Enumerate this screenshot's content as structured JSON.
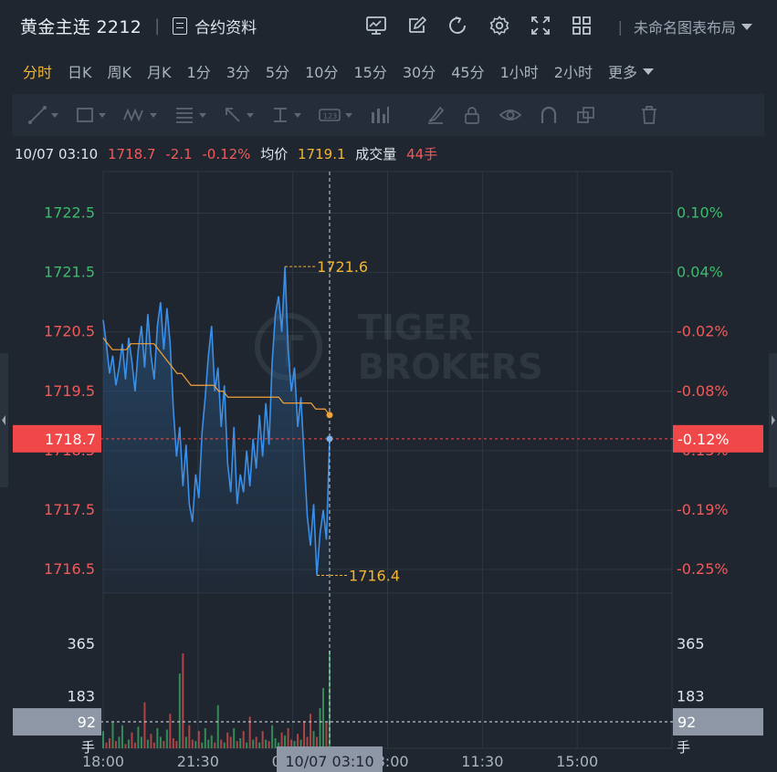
{
  "header": {
    "symbol": "黄金主连 2212",
    "contract_info": "合约资料",
    "layout_name": "未命名图表布局",
    "icons": [
      "chart-monitor-icon",
      "edit-icon",
      "refresh-icon",
      "settings-icon",
      "fullscreen-icon",
      "grid-layout-icon"
    ]
  },
  "timeframes": [
    "分时",
    "日K",
    "周K",
    "月K",
    "1分",
    "3分",
    "5分",
    "10分",
    "15分",
    "30分",
    "45分",
    "1小时",
    "2小时"
  ],
  "active_timeframe": "分时",
  "more_label": "更多",
  "drawing_tools": [
    "trend-line-icon",
    "rectangle-icon",
    "pattern-icon",
    "fib-icon",
    "arrow-icon",
    "measure-icon",
    "price-label-icon",
    "bar-pattern-icon",
    "brush-icon",
    "lock-icon",
    "eye-icon",
    "magnet-icon",
    "clone-icon",
    "trash-icon"
  ],
  "info": {
    "datetime": "10/07 03:10",
    "price": "1718.7",
    "change": "-2.1",
    "change_pct": "-0.12%",
    "avg_label": "均价",
    "avg_value": "1719.1",
    "volume_label": "成交量",
    "volume_value": "44手"
  },
  "watermark": [
    "TIGER",
    "BROKERS"
  ],
  "colors": {
    "background": "#1f2630",
    "price_line": "#3a8fe8",
    "avg_line": "#f2a23c",
    "up": "#3dbb6d",
    "down": "#f25a5a",
    "accent": "#f2b532",
    "current_badge": "#f04848"
  },
  "chart_data": {
    "type": "line",
    "y_ticks_left": [
      "1722.5",
      "1721.5",
      "1720.5",
      "1719.5",
      "1718.5",
      "1717.5",
      "1716.5"
    ],
    "y_ticks_right": [
      "0.10%",
      "0.04%",
      "-0.02%",
      "-0.08%",
      "-0.13%",
      "-0.19%",
      "-0.25%"
    ],
    "ylim": [
      1716.1,
      1723.2
    ],
    "x_ticks": [
      "18:00",
      "21:30",
      "01:00",
      "08:00",
      "11:30",
      "15:00"
    ],
    "crosshair_time": "10/07 03:10",
    "current_price_label": "1718.7",
    "current_pct_label": "-0.12%",
    "high_label": "1721.6",
    "low_label": "1716.4",
    "series": [
      {
        "values": [
          1720.7,
          1720.3,
          1719.8,
          1720.1,
          1719.6,
          1719.9,
          1720.3,
          1719.7,
          1720.4,
          1720.0,
          1719.5,
          1720.2,
          1720.6,
          1719.9,
          1720.8,
          1720.1,
          1719.7,
          1720.6,
          1721.0,
          1720.2,
          1720.9,
          1720.3,
          1719.2,
          1718.4,
          1718.9,
          1717.9,
          1718.6,
          1717.6,
          1717.3,
          1718.1,
          1717.7,
          1718.8,
          1719.4,
          1720.1,
          1720.6,
          1719.5,
          1719.9,
          1718.9,
          1719.6,
          1718.3,
          1717.8,
          1718.9,
          1717.6,
          1718.1,
          1717.8,
          1718.5,
          1717.9,
          1718.7,
          1718.2,
          1719.1,
          1718.4,
          1719.3,
          1718.6,
          1720.0,
          1720.8,
          1721.1,
          1720.5,
          1721.6,
          1720.2,
          1719.5,
          1719.9,
          1718.9,
          1719.4,
          1718.4,
          1717.4,
          1716.9,
          1717.6,
          1716.4,
          1717.1,
          1717.5,
          1717.0,
          1718.7
        ]
      },
      {
        "values": [
          1720.4,
          1720.3,
          1720.2,
          1720.2,
          1720.2,
          1720.2,
          1720.3,
          1720.3,
          1720.3,
          1720.3,
          1720.3,
          1720.3,
          1720.2,
          1720.1,
          1720.0,
          1719.9,
          1719.8,
          1719.8,
          1719.7,
          1719.6,
          1719.6,
          1719.6,
          1719.6,
          1719.6,
          1719.6,
          1719.5,
          1719.5,
          1719.4,
          1719.4,
          1719.4,
          1719.4,
          1719.4,
          1719.4,
          1719.4,
          1719.4,
          1719.4,
          1719.4,
          1719.4,
          1719.4,
          1719.3,
          1719.3,
          1719.3,
          1719.3,
          1719.3,
          1719.3,
          1719.3,
          1719.2,
          1719.2,
          1719.2,
          1719.1
        ]
      }
    ],
    "volume": {
      "y_ticks": [
        "365",
        "183"
      ],
      "current_label": "92",
      "unit": "手",
      "ylim": [
        0,
        540
      ],
      "values": [
        60,
        20,
        35,
        90,
        25,
        40,
        80,
        15,
        30,
        55,
        20,
        75,
        40,
        160,
        30,
        50,
        20,
        70,
        40,
        25,
        65,
        120,
        35,
        25,
        260,
        330,
        40,
        80,
        30,
        25,
        60,
        20,
        70,
        30,
        45,
        20,
        150,
        30,
        20,
        55,
        40,
        70,
        25,
        35,
        60,
        20,
        110,
        30,
        40,
        20,
        60,
        30,
        25,
        80,
        35,
        20,
        55,
        45,
        70,
        30,
        25,
        50,
        30,
        95,
        40,
        120,
        60,
        40,
        140,
        210,
        90,
        340
      ]
    }
  }
}
